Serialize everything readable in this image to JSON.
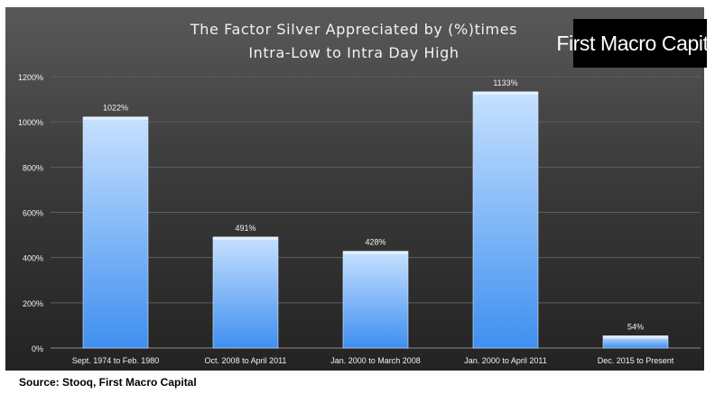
{
  "logo_text": "First Macro Capital",
  "source": "Source: Stooq, First Macro Capital",
  "colors": {
    "panel_top": "#595959",
    "panel_bottom": "#232323",
    "bar_light": "#c7e1ff",
    "bar_dark": "#3f8ff0",
    "text": "#f2f2f2"
  },
  "chart_data": {
    "type": "bar",
    "title": "The Factor Silver Appreciated by (%)times",
    "subtitle": "Intra-Low to Intra Day High",
    "xlabel": "",
    "ylabel": "",
    "categories": [
      "Sept. 1974 to Feb. 1980",
      "Oct. 2008 to April 2011",
      "Jan. 2000 to March 2008",
      "Jan. 2000 to April 2011",
      "Dec. 2015 to Present"
    ],
    "values": [
      1022,
      491,
      428,
      1133,
      54
    ],
    "data_labels": [
      "1022%",
      "491%",
      "428%",
      "1133%",
      "54%"
    ],
    "ylim": [
      0,
      1200
    ],
    "yticks": [
      0,
      200,
      400,
      600,
      800,
      1000,
      1200
    ],
    "ytick_labels": [
      "0%",
      "200%",
      "400%",
      "600%",
      "800%",
      "1000%",
      "1200%"
    ],
    "grid": true,
    "legend": "none"
  }
}
